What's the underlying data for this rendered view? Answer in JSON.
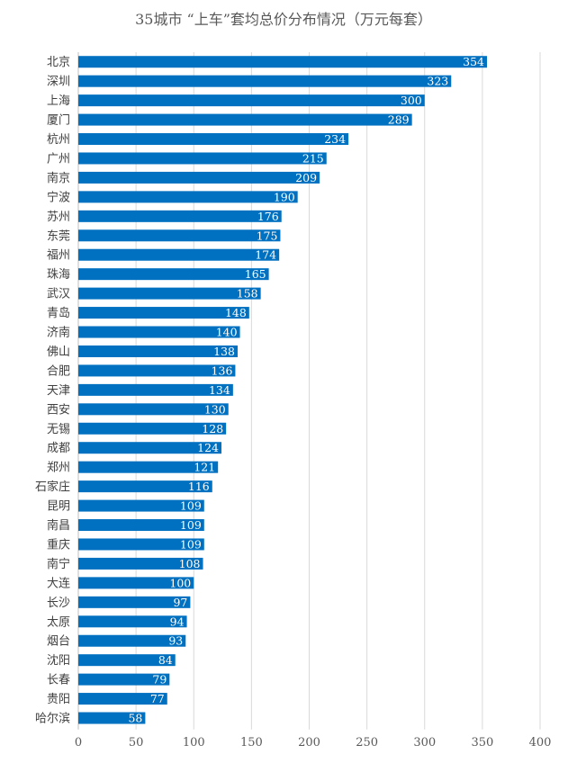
{
  "chart_data": {
    "type": "bar",
    "orientation": "horizontal",
    "title": "35城市 “上车”套均总价分布情况（万元每套）",
    "categories": [
      "北京",
      "深圳",
      "上海",
      "厦门",
      "杭州",
      "广州",
      "南京",
      "宁波",
      "苏州",
      "东莞",
      "福州",
      "珠海",
      "武汉",
      "青岛",
      "济南",
      "佛山",
      "合肥",
      "天津",
      "西安",
      "无锡",
      "成都",
      "郑州",
      "石家庄",
      "昆明",
      "南昌",
      "重庆",
      "南宁",
      "大连",
      "长沙",
      "太原",
      "烟台",
      "沈阳",
      "长春",
      "贵阳",
      "哈尔滨"
    ],
    "values": [
      354,
      323,
      300,
      289,
      234,
      215,
      209,
      190,
      176,
      175,
      174,
      165,
      158,
      148,
      140,
      138,
      136,
      134,
      130,
      128,
      124,
      121,
      116,
      109,
      109,
      109,
      108,
      100,
      97,
      94,
      93,
      84,
      79,
      77,
      58
    ],
    "xlim": [
      0,
      400
    ],
    "xticks": [
      0,
      50,
      100,
      150,
      200,
      250,
      300,
      350,
      400
    ],
    "grid": true,
    "bar_color": "#0070C0",
    "data_labels": true
  }
}
